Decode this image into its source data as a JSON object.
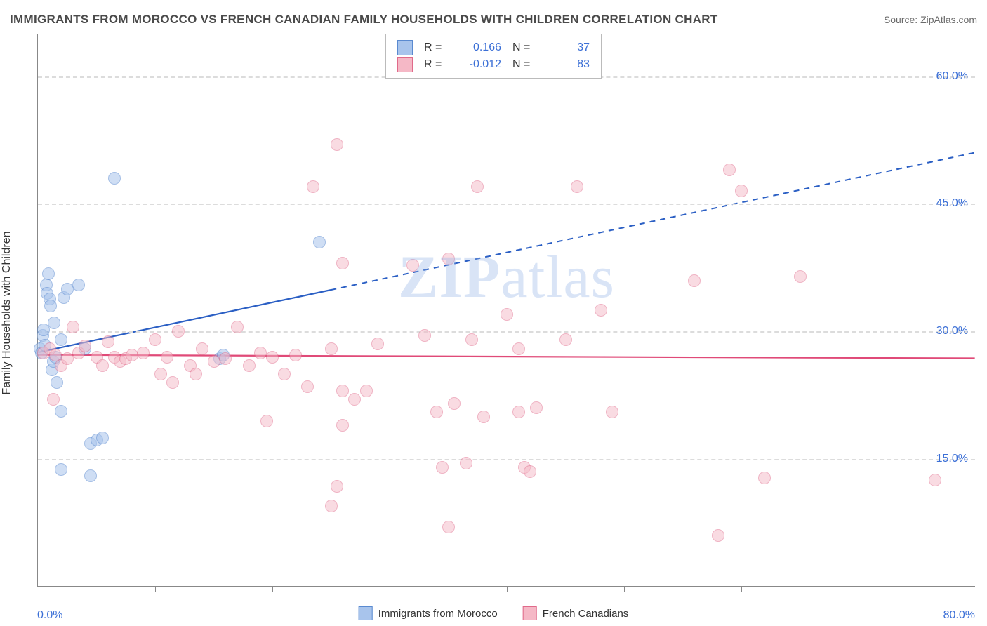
{
  "title": "IMMIGRANTS FROM MOROCCO VS FRENCH CANADIAN FAMILY HOUSEHOLDS WITH CHILDREN CORRELATION CHART",
  "source_label": "Source:",
  "source_name": "ZipAtlas.com",
  "ylabel": "Family Households with Children",
  "watermark_bold": "ZIP",
  "watermark_rest": "atlas",
  "chart": {
    "type": "scatter",
    "xlim": [
      0,
      80
    ],
    "ylim": [
      0,
      65
    ],
    "y_ticks": [
      15.0,
      30.0,
      45.0,
      60.0
    ],
    "y_tick_format": "pct1",
    "x_tick_left": "0.0%",
    "x_tick_right": "80.0%",
    "x_minor_ticks": [
      10,
      20,
      30,
      40,
      50,
      60,
      70
    ],
    "background_color": "#ffffff",
    "grid_color": "#dcdcdc",
    "axis_color": "#888888",
    "tick_label_color": "#3b6fd6",
    "marker_radius": 9,
    "marker_stroke_width": 1.2,
    "trend_solid_width": 2.2,
    "trend_dash_width": 2,
    "series": [
      {
        "key": "morocco",
        "label": "Immigrants from Morocco",
        "fill_color": "#a8c4ec",
        "stroke_color": "#5a8ad0",
        "fill_opacity": 0.55,
        "legend_fill": "#a8c4ec",
        "legend_border": "#5a8ad0",
        "R": "0.166",
        "N": "37",
        "trend": {
          "y_at_x0": 27.5,
          "y_at_x80": 51.0,
          "solid_until_x": 25,
          "color": "#2b5fc4"
        },
        "points": [
          [
            0.2,
            28
          ],
          [
            0.3,
            27.5
          ],
          [
            0.4,
            29.5
          ],
          [
            0.5,
            30.2
          ],
          [
            0.6,
            28.4
          ],
          [
            0.7,
            35.5
          ],
          [
            0.8,
            34.5
          ],
          [
            0.9,
            36.8
          ],
          [
            1.0,
            33.8
          ],
          [
            1.1,
            33.0
          ],
          [
            1.2,
            25.5
          ],
          [
            1.3,
            26.5
          ],
          [
            1.4,
            31.0
          ],
          [
            1.5,
            27.0
          ],
          [
            1.6,
            24.0
          ],
          [
            2.0,
            29.0
          ],
          [
            2.0,
            20.6
          ],
          [
            2.2,
            34.0
          ],
          [
            2.5,
            35.0
          ],
          [
            3.5,
            35.5
          ],
          [
            4.0,
            28.0
          ],
          [
            4.5,
            16.8
          ],
          [
            5.0,
            17.2
          ],
          [
            5.5,
            17.5
          ],
          [
            2.0,
            13.8
          ],
          [
            4.5,
            13.0
          ],
          [
            6.5,
            48.0
          ],
          [
            15.5,
            26.8
          ],
          [
            15.8,
            27.2
          ],
          [
            24.0,
            40.5
          ]
        ]
      },
      {
        "key": "french",
        "label": "French Canadians",
        "fill_color": "#f5b8c6",
        "stroke_color": "#e06a8a",
        "fill_opacity": 0.5,
        "legend_fill": "#f5b8c6",
        "legend_border": "#e06a8a",
        "R": "-0.012",
        "N": "83",
        "trend": {
          "y_at_x0": 27.2,
          "y_at_x80": 26.8,
          "solid_until_x": 80,
          "color": "#e04a78"
        },
        "points": [
          [
            0.5,
            27.5
          ],
          [
            1.0,
            28.0
          ],
          [
            1.3,
            22.0
          ],
          [
            1.5,
            27.2
          ],
          [
            2.0,
            26.0
          ],
          [
            2.5,
            26.8
          ],
          [
            3.0,
            30.5
          ],
          [
            3.5,
            27.5
          ],
          [
            4.0,
            28.3
          ],
          [
            5.0,
            27.0
          ],
          [
            5.5,
            26.0
          ],
          [
            6.0,
            28.8
          ],
          [
            6.5,
            27.0
          ],
          [
            7.0,
            26.5
          ],
          [
            7.5,
            26.8
          ],
          [
            8.0,
            27.2
          ],
          [
            9.0,
            27.5
          ],
          [
            10.0,
            29.0
          ],
          [
            10.5,
            25.0
          ],
          [
            11.0,
            27.0
          ],
          [
            11.5,
            24.0
          ],
          [
            12.0,
            30.0
          ],
          [
            13.0,
            26.0
          ],
          [
            13.5,
            25.0
          ],
          [
            14.0,
            28.0
          ],
          [
            15.0,
            26.5
          ],
          [
            16.0,
            26.8
          ],
          [
            17.0,
            30.5
          ],
          [
            18.0,
            26.0
          ],
          [
            19.0,
            27.5
          ],
          [
            19.5,
            19.5
          ],
          [
            20.0,
            27.0
          ],
          [
            21.0,
            25.0
          ],
          [
            22.0,
            27.2
          ],
          [
            23.0,
            23.5
          ],
          [
            23.5,
            47.0
          ],
          [
            25.0,
            28.0
          ],
          [
            25.5,
            52.0
          ],
          [
            26.0,
            23.0
          ],
          [
            25.5,
            11.8
          ],
          [
            26.0,
            19.0
          ],
          [
            25.0,
            9.5
          ],
          [
            27.0,
            22.0
          ],
          [
            28.0,
            23.0
          ],
          [
            26.0,
            38.0
          ],
          [
            29.0,
            28.5
          ],
          [
            32.0,
            37.8
          ],
          [
            33.0,
            29.5
          ],
          [
            34.0,
            20.5
          ],
          [
            34.5,
            14.0
          ],
          [
            35.0,
            38.5
          ],
          [
            35.5,
            21.5
          ],
          [
            35.0,
            7.0
          ],
          [
            36.5,
            14.5
          ],
          [
            37.0,
            29.0
          ],
          [
            38.0,
            20.0
          ],
          [
            37.5,
            47.0
          ],
          [
            40.0,
            32.0
          ],
          [
            41.0,
            28.0
          ],
          [
            41.5,
            14.0
          ],
          [
            42.0,
            13.5
          ],
          [
            42.5,
            21.0
          ],
          [
            41.0,
            20.5
          ],
          [
            45.0,
            29.0
          ],
          [
            46.0,
            47.0
          ],
          [
            48.0,
            32.5
          ],
          [
            49.0,
            20.5
          ],
          [
            56.0,
            36.0
          ],
          [
            58.0,
            6.0
          ],
          [
            59.0,
            49.0
          ],
          [
            60.0,
            46.5
          ],
          [
            62.0,
            12.8
          ],
          [
            65.0,
            36.5
          ],
          [
            76.5,
            12.5
          ]
        ]
      }
    ],
    "legend_top": {
      "R_label": "R =",
      "N_label": "N ="
    },
    "legend_bottom": {}
  }
}
